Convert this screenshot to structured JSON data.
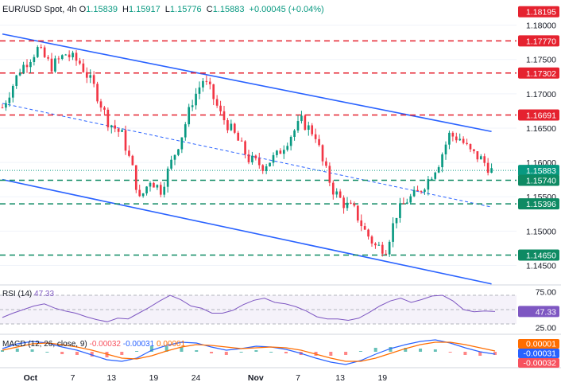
{
  "header": {
    "symbol": "EUR/USD Spot, 4h",
    "open_label": "O",
    "open": "1.15839",
    "high_label": "H",
    "high": "1.15917",
    "low_label": "L",
    "low": "1.15776",
    "close_label": "C",
    "close": "1.15883",
    "change": "+0.00045 (+0.04%)"
  },
  "colors": {
    "up": "#089981",
    "down": "#f23645",
    "channel": "#2962ff",
    "resistance": "#e5222f",
    "support": "#0e8a63",
    "rsi": "#7e57c2",
    "macd": "#2962ff",
    "signal": "#ff6d00"
  },
  "chart_data": [
    {
      "type": "candlestick",
      "title": "EUR/USD Spot, 4h",
      "y_ticks": [
        "1.18000",
        "1.17500",
        "1.17000",
        "1.16500",
        "1.16000",
        "1.15500",
        "1.15000",
        "1.14500"
      ],
      "x_ticks": [
        "Oct",
        "7",
        "13",
        "19",
        "24",
        "Nov",
        "7",
        "13",
        "19"
      ],
      "ylim": [
        1.1425,
        1.1825
      ],
      "close_path": [
        [
          0,
          1.168
        ],
        [
          5,
          1.1735
        ],
        [
          10,
          1.1765
        ],
        [
          14,
          1.174
        ],
        [
          18,
          1.1758
        ],
        [
          22,
          1.1745
        ],
        [
          26,
          1.171
        ],
        [
          30,
          1.166
        ],
        [
          34,
          1.164
        ],
        [
          37,
          1.159
        ],
        [
          39,
          1.1545
        ],
        [
          42,
          1.1575
        ],
        [
          45,
          1.156
        ],
        [
          48,
          1.16
        ],
        [
          51,
          1.164
        ],
        [
          54,
          1.169
        ],
        [
          57,
          1.172
        ],
        [
          59,
          1.1705
        ],
        [
          62,
          1.167
        ],
        [
          66,
          1.164
        ],
        [
          70,
          1.1605
        ],
        [
          74,
          1.1595
        ],
        [
          78,
          1.161
        ],
        [
          82,
          1.164
        ],
        [
          85,
          1.166
        ],
        [
          87,
          1.165
        ],
        [
          89,
          1.164
        ],
        [
          91,
          1.16
        ],
        [
          94,
          1.156
        ],
        [
          97,
          1.154
        ],
        [
          100,
          1.153
        ],
        [
          103,
          1.15
        ],
        [
          106,
          1.1478
        ],
        [
          109,
          1.1475
        ],
        [
          112,
          1.1525
        ],
        [
          115,
          1.1545
        ],
        [
          118,
          1.1555
        ],
        [
          121,
          1.1575
        ],
        [
          124,
          1.16
        ],
        [
          127,
          1.164
        ],
        [
          130,
          1.1635
        ],
        [
          133,
          1.1615
        ],
        [
          136,
          1.1605
        ],
        [
          139,
          1.1588
        ]
      ],
      "levels": [
        {
          "label": "1.18195",
          "value": 1.18195,
          "style": "bg-red"
        },
        {
          "label": "1.17770",
          "value": 1.1777,
          "style": "red-dash"
        },
        {
          "label": "1.17302",
          "value": 1.17302,
          "style": "red-dash"
        },
        {
          "label": "1.16691",
          "value": 1.16691,
          "style": "red-dash"
        },
        {
          "label": "1.15883",
          "value": 1.15883,
          "style": "price"
        },
        {
          "label": "1.15740",
          "value": 1.1574,
          "style": "green-dash"
        },
        {
          "label": "1.15396",
          "value": 1.15396,
          "style": "green-dash"
        },
        {
          "label": "1.14650",
          "value": 1.1465,
          "style": "green-dash"
        }
      ],
      "channel": {
        "upper": [
          [
            0,
            1.1787
          ],
          [
            139,
            1.1645
          ]
        ],
        "lower": [
          [
            0,
            1.1575
          ],
          [
            139,
            1.1423
          ]
        ],
        "middle": [
          [
            0,
            1.1686
          ],
          [
            139,
            1.1535
          ]
        ]
      }
    },
    {
      "type": "line",
      "title": "RSI (14)",
      "value": "47.33",
      "y_ticks": [
        "75.00",
        "25.00"
      ],
      "ylim": [
        20,
        80
      ],
      "series": [
        {
          "values": [
            39,
            45,
            50,
            55,
            58,
            52,
            48,
            45,
            40,
            36,
            33,
            38,
            37,
            45,
            53,
            62,
            70,
            64,
            55,
            52,
            45,
            45,
            49,
            57,
            63,
            66,
            60,
            58,
            54,
            48,
            40,
            37,
            37,
            35,
            38,
            46,
            55,
            62,
            66,
            60,
            64,
            69,
            70,
            62,
            50,
            47,
            48,
            47.3
          ]
        }
      ]
    },
    {
      "type": "bar",
      "title": "MACD (12, 26, close, 9)",
      "values_text": [
        "-0.00032",
        "-0.00031",
        "0.00001"
      ],
      "right_labels": [
        "0.00001",
        "-0.00031",
        "-0.00032"
      ],
      "macd": [
        0.0004,
        0.001,
        0.0013,
        0.0011,
        0.0006,
        0.0002,
        -0.0004,
        -0.001,
        -0.0012,
        -0.0008,
        0.0002,
        0.0008,
        0.0012,
        0.0011,
        0.0006,
        0.0002,
        0.0004,
        0.0007,
        0.0006,
        0.0003,
        -0.0002,
        -0.0008,
        -0.0013,
        -0.0016,
        -0.0011,
        -0.0003,
        0.0004,
        0.0009,
        0.0013,
        0.0015,
        0.0011,
        0.0005,
        0.0,
        -0.0003
      ],
      "signal": [
        0.0002,
        0.0006,
        0.001,
        0.0011,
        0.0009,
        0.0006,
        0.0002,
        -0.0003,
        -0.0008,
        -0.0009,
        -0.0005,
        0.0001,
        0.0006,
        0.0009,
        0.0008,
        0.0006,
        0.0004,
        0.0005,
        0.0006,
        0.0005,
        0.0002,
        -0.0003,
        -0.0008,
        -0.0012,
        -0.0012,
        -0.0008,
        -0.0002,
        0.0004,
        0.0009,
        0.0012,
        0.0012,
        0.0009,
        0.0005,
        0.0001
      ]
    }
  ]
}
